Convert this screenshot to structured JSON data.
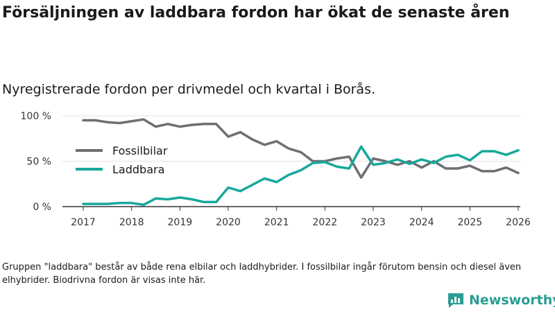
{
  "title": "Försäljningen av laddbara fordon har ökat de senaste åren",
  "subtitle": "Nyregistrerade fordon per drivmedel och kvartal i Borås.",
  "footnote": "Gruppen \"laddbara\" består av både rena elbilar och laddhybrider. I fossilbilar ingår förutom bensin och diesel även elhybrider. Biodrivna fordon är visas inte här.",
  "brand": {
    "name": "Newsworthy",
    "color": "#2a9d94",
    "icon": "newsworthy-logo-icon"
  },
  "chart_data": {
    "type": "line",
    "title": "Försäljningen av laddbara fordon har ökat de senaste åren",
    "subtitle": "Nyregistrerade fordon per drivmedel och kvartal i Borås.",
    "xlabel": "",
    "ylabel": "",
    "xlim": [
      2017,
      2026
    ],
    "ylim": [
      0,
      100
    ],
    "x_ticks": [
      2017,
      2018,
      2019,
      2020,
      2021,
      2022,
      2023,
      2024,
      2025,
      2026
    ],
    "y_ticks": [
      {
        "value": 0,
        "label": "0 %"
      },
      {
        "value": 50,
        "label": "50 %"
      },
      {
        "value": 100,
        "label": "100 %"
      }
    ],
    "grid": true,
    "legend_position": "left-middle",
    "x": [
      2017,
      2017.25,
      2017.5,
      2017.75,
      2018,
      2018.25,
      2018.5,
      2018.75,
      2019,
      2019.25,
      2019.5,
      2019.75,
      2020,
      2020.25,
      2020.5,
      2020.75,
      2021,
      2021.25,
      2021.5,
      2021.75,
      2022,
      2022.25,
      2022.5,
      2022.75,
      2023,
      2023.25,
      2023.5,
      2023.75,
      2024,
      2024.25,
      2024.5,
      2024.75,
      2025,
      2025.25,
      2025.5,
      2025.75,
      2026
    ],
    "series": [
      {
        "name": "Fossilbilar",
        "color": "#6e6e73",
        "values": [
          95,
          95,
          93,
          92,
          94,
          96,
          88,
          91,
          88,
          90,
          91,
          91,
          77,
          82,
          74,
          68,
          72,
          64,
          60,
          50,
          50,
          53,
          55,
          32,
          53,
          50,
          46,
          50,
          43,
          50,
          42,
          42,
          45,
          39,
          39,
          43,
          37
        ]
      },
      {
        "name": "Laddbara",
        "color": "#17a89b",
        "values": [
          3,
          3,
          3,
          4,
          4,
          2,
          9,
          8,
          10,
          8,
          5,
          5,
          21,
          17,
          24,
          31,
          27,
          35,
          40,
          48,
          49,
          44,
          42,
          66,
          46,
          48,
          52,
          47,
          52,
          48,
          55,
          57,
          51,
          61,
          61,
          57,
          62
        ]
      }
    ]
  }
}
